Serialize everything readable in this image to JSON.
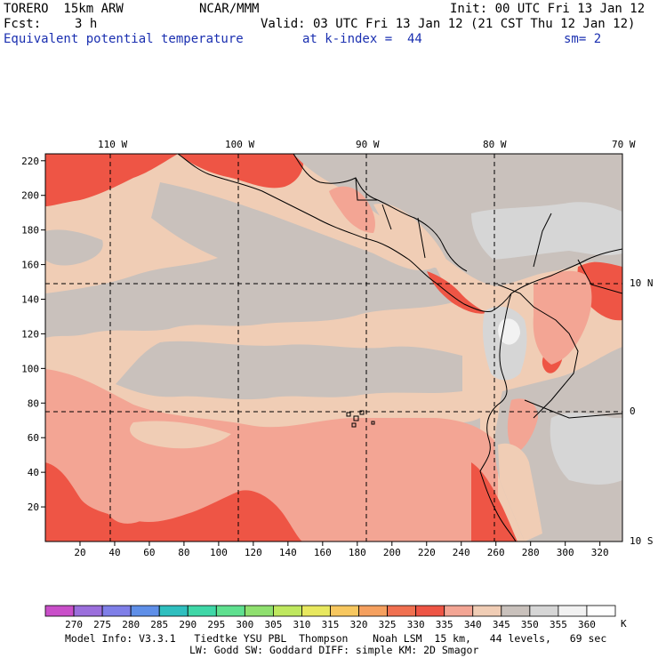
{
  "header": {
    "model": "TORERO  15km ARW",
    "center": "NCAR/MMM",
    "init": "Init: 00 UTC Fri 13 Jan 12",
    "fcst_label": "Fcst:",
    "fcst_value": "3 h",
    "valid": "Valid: 03 UTC Fri 13 Jan 12 (21 CST Thu 12 Jan 12)",
    "field": "Equivalent potential temperature",
    "level": "at k-index =  44",
    "smoothing": "sm= 2"
  },
  "map": {
    "lon_labels": [
      "110 W",
      "100 W",
      "90 W",
      "80 W",
      "70 W"
    ],
    "lat_labels": [
      "10 N",
      "0",
      "10 S"
    ],
    "y_ticks": [
      "20",
      "40",
      "60",
      "80",
      "100",
      "120",
      "140",
      "160",
      "180",
      "200",
      "220"
    ],
    "x_ticks": [
      "20",
      "40",
      "60",
      "80",
      "100",
      "120",
      "140",
      "160",
      "180",
      "200",
      "220",
      "240",
      "260",
      "280",
      "300",
      "320"
    ]
  },
  "colorbar": {
    "labels": [
      "270",
      "275",
      "280",
      "285",
      "290",
      "295",
      "300",
      "305",
      "310",
      "315",
      "320",
      "325",
      "330",
      "335",
      "340",
      "345",
      "350",
      "355",
      "360"
    ],
    "unit": "K",
    "colors": [
      "#c94fc9",
      "#9b6fdc",
      "#7f7fe8",
      "#5f8fe8",
      "#2fbfbf",
      "#3fd7a7",
      "#5fe08f",
      "#8fe06f",
      "#bfe85f",
      "#e8e85f",
      "#f7c75f",
      "#f5a05f",
      "#f07050",
      "#ee5545",
      "#f3a594",
      "#f0cdb5",
      "#c9c1bc",
      "#d6d6d6",
      "#f2f2f2"
    ]
  },
  "field_colors": {
    "c330": "#ee5545",
    "c335": "#f3a594",
    "c340": "#f0cdb5",
    "c345": "#c9c1bc",
    "c350": "#d6d6d6",
    "c355": "#f2f2f2"
  },
  "footer": {
    "line1": "Model Info: V3.3.1   Tiedtke YSU PBL  Thompson    Noah LSM  15 km,   44 levels,   69 sec",
    "line2": "LW: Godd SW: Goddard DIFF: simple KM: 2D Smagor"
  }
}
